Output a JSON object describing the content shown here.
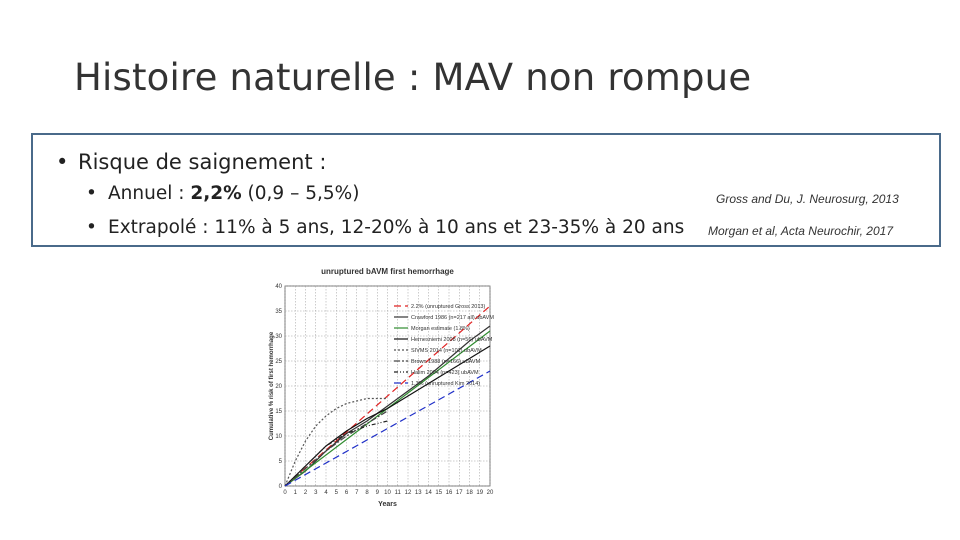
{
  "slide": {
    "title": "Histoire naturelle : MAV non rompue",
    "bullet1": "Risque de saignement :",
    "sub1_prefix": "Annuel : ",
    "sub1_bold": "2,2%",
    "sub1_suffix": " (0,9 – 5,5%)",
    "sub2": "Extrapolé : 11% à 5 ans, 12-20% à 10 ans et 23-35% à 20 ans",
    "ref1": "Gross and Du, J. Neurosurg, 2013",
    "ref2": "Morgan et al, Acta Neurochir, 2017",
    "bullet_glyph": "•"
  },
  "chart_data": {
    "type": "line",
    "title": "unruptured bAVM first hemorrhage",
    "xlabel": "Years",
    "ylabel": "Cumulative % risk of first hemorrhage",
    "xlim": [
      0,
      20
    ],
    "ylim": [
      0,
      40
    ],
    "x_ticks": [
      0,
      1,
      2,
      3,
      4,
      5,
      6,
      7,
      8,
      9,
      10,
      11,
      12,
      13,
      14,
      15,
      16,
      17,
      18,
      19,
      20
    ],
    "y_ticks": [
      0,
      5,
      10,
      15,
      20,
      25,
      30,
      35,
      40
    ],
    "grid": true,
    "legend_position": "top-right",
    "series": [
      {
        "name": "2.2% (unruptured Gross 2013)",
        "color": "#e02020",
        "dash": "7,4",
        "x": [
          0,
          20
        ],
        "y": [
          0,
          36
        ]
      },
      {
        "name": "Crawford 1986 (n=217 all) ubAVM",
        "color": "#333333",
        "dash": "",
        "x": [
          0,
          2,
          4,
          6,
          8,
          10,
          12,
          14,
          16,
          18,
          20
        ],
        "y": [
          0,
          3,
          7,
          10.5,
          13,
          16,
          19,
          22,
          25.5,
          29,
          32
        ]
      },
      {
        "name": "Morgan estimate (1.8%)",
        "color": "#2e8b2e",
        "dash": "",
        "x": [
          0,
          20
        ],
        "y": [
          0,
          31
        ]
      },
      {
        "name": "Hernesniemi 2008 (n=56) ubAVM",
        "color": "#111111",
        "dash": "",
        "x": [
          0,
          2,
          4,
          6,
          8,
          10,
          12,
          14,
          16,
          18,
          20
        ],
        "y": [
          0,
          4,
          8,
          11,
          13.5,
          15.5,
          18,
          20.5,
          23,
          25.5,
          28
        ]
      },
      {
        "name": "SIVMS 2014 (n=101) ubAVM",
        "color": "#555555",
        "dash": "2,2",
        "x": [
          0,
          1,
          2,
          3,
          4,
          5,
          6,
          7,
          8,
          9,
          10
        ],
        "y": [
          0,
          5,
          9,
          12,
          14,
          15.5,
          16.5,
          17,
          17.5,
          17.5,
          17.5
        ]
      },
      {
        "name": "Brown 1988 (n=166) ubAVM",
        "color": "#444444",
        "dash": "6,2,2,2",
        "x": [
          0,
          2,
          4,
          6,
          8,
          10
        ],
        "y": [
          0,
          3.5,
          7,
          10,
          12.5,
          15
        ]
      },
      {
        "name": "Halim 2004 (n=423) ubAVM",
        "color": "#222222",
        "dash": "4,2,1,2,1,2",
        "x": [
          0,
          2,
          4,
          6,
          8,
          10
        ],
        "y": [
          0,
          4,
          8,
          10.5,
          12,
          13
        ]
      },
      {
        "name": "1.3% (unruptured Kim 2014)",
        "color": "#2030c8",
        "dash": "7,4",
        "x": [
          0,
          20
        ],
        "y": [
          0,
          23
        ]
      }
    ]
  }
}
